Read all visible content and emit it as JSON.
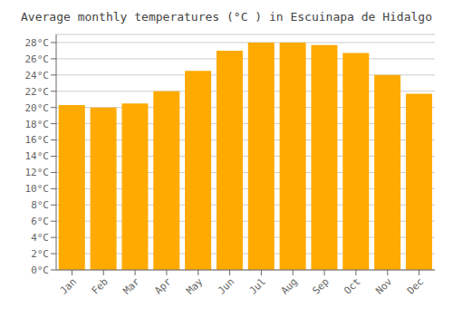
{
  "chart_data": {
    "type": "bar",
    "title": "Average monthly temperatures (°C ) in Escuinapa de Hidalgo",
    "categories": [
      "Jan",
      "Feb",
      "Mar",
      "Apr",
      "May",
      "Jun",
      "Jul",
      "Aug",
      "Sep",
      "Oct",
      "Nov",
      "Dec"
    ],
    "values": [
      20.3,
      20.0,
      20.5,
      22.0,
      24.5,
      27.0,
      28.0,
      28.0,
      27.7,
      26.7,
      24.0,
      21.7
    ],
    "color": "#FFAA00",
    "ylim": [
      0,
      29
    ],
    "yticks": [
      {
        "value": 0,
        "label": "0°C"
      },
      {
        "value": 2,
        "label": "2°C"
      },
      {
        "value": 4,
        "label": "4°C"
      },
      {
        "value": 6,
        "label": "6°C"
      },
      {
        "value": 8,
        "label": "8°C"
      },
      {
        "value": 10,
        "label": "10°C"
      },
      {
        "value": 12,
        "label": "12°C"
      },
      {
        "value": 14,
        "label": "14°C"
      },
      {
        "value": 16,
        "label": "16°C"
      },
      {
        "value": 18,
        "label": "18°C"
      },
      {
        "value": 20,
        "label": "20°C"
      },
      {
        "value": 22,
        "label": "22°C"
      },
      {
        "value": 24,
        "label": "24°C"
      },
      {
        "value": 26,
        "label": "26°C"
      },
      {
        "value": 28,
        "label": "28°C"
      }
    ],
    "grid": true
  }
}
